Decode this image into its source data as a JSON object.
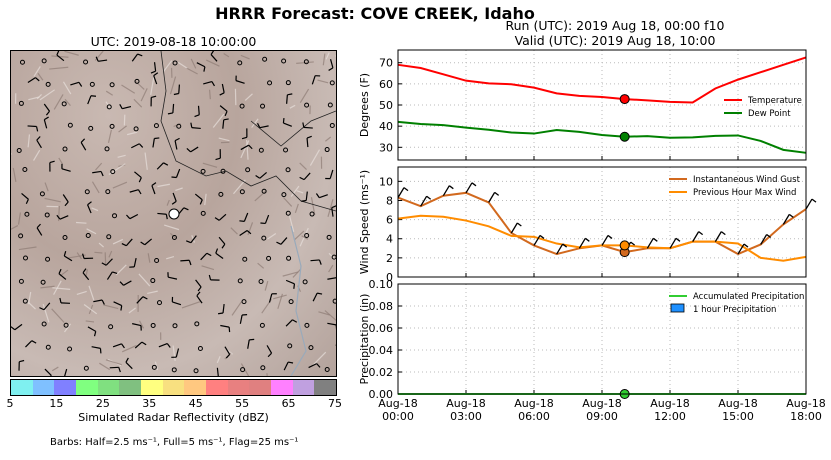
{
  "title": "HRRR Forecast: COVE CREEK, Idaho",
  "run_line1": "Run (UTC): 2019 Aug 18, 00:00 f10",
  "run_line2": "Valid (UTC): 2019 Aug 18, 10:00",
  "map": {
    "title": "UTC: 2019-08-18 10:00:00",
    "colorbar_label": "Simulated Radar Reflectivity (dBZ)",
    "colorbar_ticks": [
      "5",
      "15",
      "25",
      "35",
      "45",
      "55",
      "65",
      "75"
    ],
    "colorbar_colors": [
      "#7ff0f0",
      "#7fc0ff",
      "#8080ff",
      "#80ff80",
      "#80e080",
      "#80c080",
      "#ffff80",
      "#f8e080",
      "#ffc880",
      "#ff8080",
      "#e88080",
      "#e08080",
      "#ff80ff",
      "#c0a0e0",
      "#808080"
    ],
    "barbs_note": "Barbs: Half=2.5 ms⁻¹, Full=5 ms⁻¹, Flag=25 ms⁻¹"
  },
  "colors": {
    "temperature": "#ff0000",
    "dew_point": "#008000",
    "gust": "#d2691e",
    "max_wind": "#ff8c00",
    "accum_precip": "#32cd32",
    "hour_precip": "#1e90ff"
  },
  "chart_data": [
    {
      "type": "line",
      "ylabel": "Degrees (F)",
      "ylim": [
        24,
        76
      ],
      "yticks": [
        30,
        40,
        50,
        60,
        70
      ],
      "grid": true,
      "legend": "right",
      "x": [
        0,
        1,
        2,
        3,
        4,
        5,
        6,
        7,
        8,
        9,
        10,
        11,
        12,
        13,
        14,
        15,
        16,
        17,
        18
      ],
      "series": [
        {
          "name": "Temperature",
          "values": [
            69,
            67.5,
            64.5,
            61.5,
            60.2,
            59.8,
            58.2,
            55.5,
            54.3,
            53.8,
            52.8,
            52.2,
            51.5,
            51.2,
            57.8,
            62,
            65.5,
            69,
            72.5
          ]
        },
        {
          "name": "Dew Point",
          "values": [
            42,
            41,
            40.5,
            39.3,
            38.3,
            37,
            36.5,
            38.2,
            37.3,
            35.8,
            35,
            35.3,
            34.5,
            34.7,
            35.4,
            35.6,
            33,
            28.8,
            27.4
          ]
        }
      ],
      "marker": {
        "x": 10,
        "values": [
          52.8,
          35
        ]
      }
    },
    {
      "type": "line",
      "ylabel": "Wind Speed (ms⁻¹)",
      "ylim": [
        0,
        11.5
      ],
      "yticks": [
        0,
        2,
        4,
        6,
        8,
        10
      ],
      "grid": true,
      "legend": "top-right",
      "x": [
        0,
        1,
        2,
        3,
        4,
        5,
        6,
        7,
        8,
        9,
        10,
        11,
        12,
        13,
        14,
        15,
        16,
        17,
        18
      ],
      "series": [
        {
          "name": "Instantaneous Wind Gust",
          "values": [
            8.3,
            7.4,
            8.5,
            8.8,
            7.8,
            4.6,
            3.3,
            2.4,
            3.0,
            3.3,
            2.6,
            3.0,
            3.0,
            3.7,
            3.7,
            2.4,
            3.4,
            5.5,
            7.1
          ]
        },
        {
          "name": "Previous Hour Max Wind",
          "values": [
            6.1,
            6.4,
            6.3,
            5.9,
            5.3,
            4.3,
            4.2,
            3.5,
            3.1,
            3.3,
            3.3,
            3.1,
            3.0,
            3.7,
            3.7,
            3.5,
            2.0,
            1.7,
            2.1
          ]
        }
      ],
      "marker": {
        "x": 10,
        "values": [
          2.6,
          3.3
        ]
      }
    },
    {
      "type": "line",
      "ylabel": "Precipitation (in)",
      "ylim": [
        0,
        0.1
      ],
      "yticks": [
        "0.00",
        "0.02",
        "0.04",
        "0.06",
        "0.08",
        "0.10"
      ],
      "grid": true,
      "legend": "top-right",
      "x": [
        0,
        18
      ],
      "series": [
        {
          "name": "Accumulated Precipitation",
          "values": [
            0,
            0
          ]
        },
        {
          "name": "1 hour Precipitation",
          "values": [
            0,
            0
          ]
        }
      ],
      "marker": {
        "x": 10,
        "values": [
          0
        ]
      }
    }
  ],
  "x_ticks": [
    {
      "l1": "Aug-18",
      "l2": "00:00"
    },
    {
      "l1": "Aug-18",
      "l2": "03:00"
    },
    {
      "l1": "Aug-18",
      "l2": "06:00"
    },
    {
      "l1": "Aug-18",
      "l2": "09:00"
    },
    {
      "l1": "Aug-18",
      "l2": "12:00"
    },
    {
      "l1": "Aug-18",
      "l2": "15:00"
    },
    {
      "l1": "Aug-18",
      "l2": "18:00"
    }
  ]
}
